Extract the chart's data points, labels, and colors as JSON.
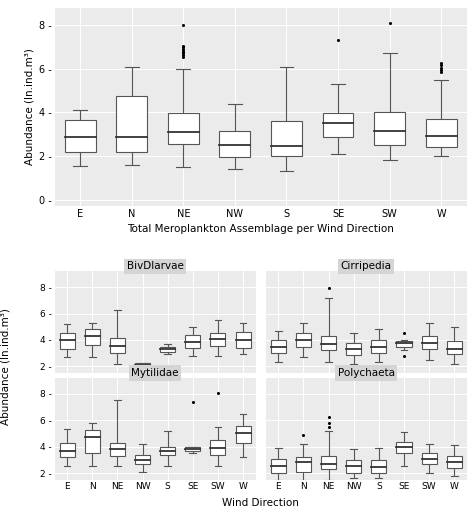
{
  "top_panel": {
    "title": "Total Meroplankton Assemblage per Wind Direction",
    "categories": [
      "E",
      "N",
      "NE",
      "NW",
      "S",
      "SE",
      "SW",
      "W"
    ],
    "ylabel": "Abundance (ln.ind.m³)",
    "ylim": [
      -0.3,
      8.8
    ],
    "yticks": [
      0,
      2,
      4,
      6,
      8
    ],
    "boxes": {
      "E": {
        "q1": 2.2,
        "median": 2.85,
        "q3": 3.65,
        "whislo": 1.55,
        "whishi": 4.1,
        "fliers": []
      },
      "N": {
        "q1": 2.2,
        "median": 2.85,
        "q3": 4.75,
        "whislo": 1.6,
        "whishi": 6.1,
        "fliers": []
      },
      "NE": {
        "q1": 2.55,
        "median": 3.1,
        "q3": 3.95,
        "whislo": 1.5,
        "whishi": 6.0,
        "fliers": [
          6.55,
          6.65,
          6.7,
          6.75,
          6.8,
          6.9,
          7.0,
          7.05,
          8.0
        ]
      },
      "NW": {
        "q1": 1.95,
        "median": 2.5,
        "q3": 3.15,
        "whislo": 1.4,
        "whishi": 4.4,
        "fliers": []
      },
      "S": {
        "q1": 2.0,
        "median": 2.45,
        "q3": 3.6,
        "whislo": 1.3,
        "whishi": 6.1,
        "fliers": []
      },
      "SE": {
        "q1": 2.85,
        "median": 3.5,
        "q3": 3.95,
        "whislo": 2.1,
        "whishi": 5.3,
        "fliers": [
          7.3
        ]
      },
      "SW": {
        "q1": 2.5,
        "median": 3.15,
        "q3": 4.0,
        "whislo": 1.8,
        "whishi": 6.7,
        "fliers": [
          8.1
        ]
      },
      "W": {
        "q1": 2.4,
        "median": 2.9,
        "q3": 3.7,
        "whislo": 2.0,
        "whishi": 5.5,
        "fliers": [
          5.85,
          5.95,
          6.05,
          6.15,
          6.25
        ]
      }
    }
  },
  "bottom_panels": {
    "BivDlarvae": {
      "categories": [
        "E",
        "N",
        "NE",
        "NW",
        "S",
        "SE",
        "SW",
        "W"
      ],
      "ylim": [
        1.5,
        9.2
      ],
      "yticks": [
        2,
        4,
        6,
        8
      ],
      "boxes": {
        "E": {
          "q1": 3.3,
          "median": 4.0,
          "q3": 4.55,
          "whislo": 2.7,
          "whishi": 5.2,
          "fliers": []
        },
        "N": {
          "q1": 3.6,
          "median": 4.3,
          "q3": 4.85,
          "whislo": 2.7,
          "whishi": 5.3,
          "fliers": []
        },
        "NE": {
          "q1": 3.0,
          "median": 3.55,
          "q3": 4.15,
          "whislo": 2.2,
          "whishi": 6.3,
          "fliers": []
        },
        "NW": {
          "q1": 1.9,
          "median": 2.1,
          "q3": 2.25,
          "whislo": 1.9,
          "whishi": 2.25,
          "fliers": []
        },
        "S": {
          "q1": 3.1,
          "median": 3.3,
          "q3": 3.5,
          "whislo": 2.9,
          "whishi": 3.7,
          "fliers": []
        },
        "SE": {
          "q1": 3.35,
          "median": 3.85,
          "q3": 4.35,
          "whislo": 2.8,
          "whishi": 5.0,
          "fliers": []
        },
        "SW": {
          "q1": 3.55,
          "median": 4.05,
          "q3": 4.55,
          "whislo": 2.8,
          "whishi": 5.5,
          "fliers": []
        },
        "W": {
          "q1": 3.4,
          "median": 4.0,
          "q3": 4.6,
          "whislo": 2.9,
          "whishi": 5.3,
          "fliers": []
        }
      }
    },
    "Cirripedia": {
      "categories": [
        "E",
        "N",
        "NE",
        "NW",
        "S",
        "SE",
        "SW",
        "W"
      ],
      "ylim": [
        1.5,
        9.2
      ],
      "yticks": [
        2,
        4,
        6,
        8
      ],
      "boxes": {
        "E": {
          "q1": 3.0,
          "median": 3.5,
          "q3": 4.0,
          "whislo": 2.3,
          "whishi": 4.7,
          "fliers": []
        },
        "N": {
          "q1": 3.5,
          "median": 4.0,
          "q3": 4.5,
          "whislo": 2.7,
          "whishi": 5.3,
          "fliers": []
        },
        "NE": {
          "q1": 3.2,
          "median": 3.7,
          "q3": 4.3,
          "whislo": 2.3,
          "whishi": 7.2,
          "fliers": [
            7.95
          ]
        },
        "NW": {
          "q1": 2.85,
          "median": 3.3,
          "q3": 3.8,
          "whislo": 2.2,
          "whishi": 4.5,
          "fliers": []
        },
        "S": {
          "q1": 3.0,
          "median": 3.5,
          "q3": 4.0,
          "whislo": 2.3,
          "whishi": 4.8,
          "fliers": []
        },
        "SE": {
          "q1": 3.5,
          "median": 3.75,
          "q3": 3.9,
          "whislo": 3.2,
          "whishi": 4.0,
          "fliers": [
            2.8,
            4.55
          ]
        },
        "SW": {
          "q1": 3.3,
          "median": 3.75,
          "q3": 4.3,
          "whislo": 2.5,
          "whishi": 5.3,
          "fliers": []
        },
        "W": {
          "q1": 2.9,
          "median": 3.3,
          "q3": 3.9,
          "whislo": 2.2,
          "whishi": 5.0,
          "fliers": []
        }
      }
    },
    "Mytilidae": {
      "categories": [
        "E",
        "N",
        "NE",
        "NW",
        "S",
        "SE",
        "SW",
        "W"
      ],
      "ylim": [
        1.5,
        9.2
      ],
      "yticks": [
        2,
        4,
        6,
        8
      ],
      "boxes": {
        "E": {
          "q1": 3.2,
          "median": 3.65,
          "q3": 4.3,
          "whislo": 2.5,
          "whishi": 5.3,
          "fliers": []
        },
        "N": {
          "q1": 3.55,
          "median": 4.7,
          "q3": 5.25,
          "whislo": 2.5,
          "whishi": 5.8,
          "fliers": []
        },
        "NE": {
          "q1": 3.3,
          "median": 3.8,
          "q3": 4.3,
          "whislo": 2.5,
          "whishi": 7.5,
          "fliers": []
        },
        "NW": {
          "q1": 2.7,
          "median": 3.0,
          "q3": 3.4,
          "whislo": 2.1,
          "whishi": 4.2,
          "fliers": []
        },
        "S": {
          "q1": 3.4,
          "median": 3.7,
          "q3": 4.0,
          "whislo": 2.5,
          "whishi": 5.2,
          "fliers": []
        },
        "SE": {
          "q1": 3.7,
          "median": 3.85,
          "q3": 3.95,
          "whislo": 3.5,
          "whishi": 4.0,
          "fliers": [
            7.4
          ]
        },
        "SW": {
          "q1": 3.4,
          "median": 3.9,
          "q3": 4.5,
          "whislo": 2.5,
          "whishi": 5.5,
          "fliers": [
            8.05
          ]
        },
        "W": {
          "q1": 4.3,
          "median": 5.0,
          "q3": 5.6,
          "whislo": 3.2,
          "whishi": 6.5,
          "fliers": []
        }
      }
    },
    "Polychaeta": {
      "categories": [
        "E",
        "N",
        "NE",
        "NW",
        "S",
        "SE",
        "SW",
        "W"
      ],
      "ylim": [
        1.5,
        9.2
      ],
      "yticks": [
        2,
        4,
        6,
        8
      ],
      "boxes": {
        "E": {
          "q1": 2.0,
          "median": 2.5,
          "q3": 3.1,
          "whislo": 1.5,
          "whishi": 3.9,
          "fliers": []
        },
        "N": {
          "q1": 2.1,
          "median": 2.8,
          "q3": 3.2,
          "whislo": 1.5,
          "whishi": 4.2,
          "fliers": [
            4.85
          ]
        },
        "NE": {
          "q1": 2.3,
          "median": 2.7,
          "q3": 3.3,
          "whislo": 1.5,
          "whishi": 5.2,
          "fliers": [
            5.5,
            5.8,
            6.25
          ]
        },
        "NW": {
          "q1": 2.0,
          "median": 2.5,
          "q3": 3.0,
          "whislo": 1.6,
          "whishi": 3.8,
          "fliers": []
        },
        "S": {
          "q1": 2.0,
          "median": 2.45,
          "q3": 3.0,
          "whislo": 1.6,
          "whishi": 3.9,
          "fliers": []
        },
        "SE": {
          "q1": 3.5,
          "median": 3.95,
          "q3": 4.35,
          "whislo": 2.5,
          "whishi": 5.1,
          "fliers": []
        },
        "SW": {
          "q1": 2.7,
          "median": 3.1,
          "q3": 3.5,
          "whislo": 2.0,
          "whishi": 4.2,
          "fliers": []
        },
        "W": {
          "q1": 2.4,
          "median": 2.8,
          "q3": 3.3,
          "whislo": 1.8,
          "whishi": 4.1,
          "fliers": []
        }
      }
    }
  },
  "plot_bg_color": "#ebebeb",
  "panel_header_color": "#d5d5d5",
  "box_facecolor": "white",
  "box_edgecolor": "#555555",
  "median_color": "#333333",
  "whisker_color": "#555555",
  "flier_color": "black",
  "grid_color": "#ffffff",
  "ylabel_top": "Abundance (ln.ind.m³)",
  "ylabel_bottom": "Abundance (ln.ind.m³)",
  "xlabel_bottom": "Wind Direction",
  "top_title": "Total Meroplankton Assemblage per Wind Direction"
}
